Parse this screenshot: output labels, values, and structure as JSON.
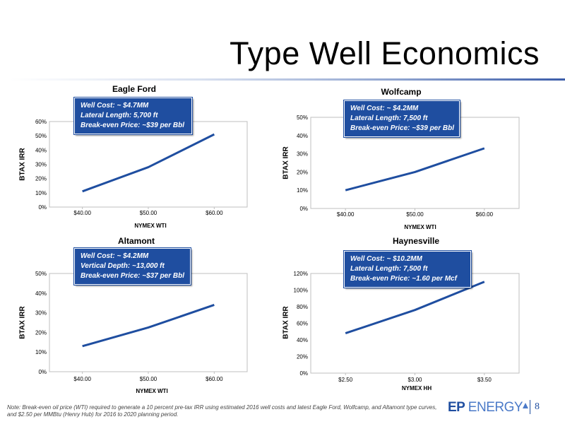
{
  "header": {
    "title": "Type Well Economics"
  },
  "footer": {
    "note": "Note:  Break-even oil price (WTI) required to generate a 10 percent pre-tax IRR using estimated 2016 well costs and latest Eagle Ford, Wolfcamp, and Altamont type curves, and $2.50 per MMBtu (Henry Hub) for 2016 to 2020 planning period.",
    "logo_ep": "EP",
    "logo_energy": "ENERGY",
    "page_number": "8"
  },
  "colors": {
    "line": "#1f4ea0",
    "callout_bg": "#1f4ea0",
    "axis": "#bfbfbf"
  },
  "chart_data": [
    {
      "type": "line",
      "title": "Eagle Ford",
      "xlabel": "NYMEX WTI",
      "ylabel": "BTAX IRR",
      "categories": [
        "$40.00",
        "$50.00",
        "$60.00"
      ],
      "series": [
        {
          "values": [
            0.11,
            0.28,
            0.51
          ]
        }
      ],
      "ylim": [
        0,
        0.6
      ],
      "yticks": [
        "0%",
        "10%",
        "20%",
        "30%",
        "40%",
        "50%",
        "60%"
      ],
      "callout": [
        "Well Cost: ~ $4.7MM",
        "Lateral Length: 5,700 ft",
        "Break-even Price: ~$39 per Bbl"
      ],
      "grid": false
    },
    {
      "type": "line",
      "title": "Wolfcamp",
      "xlabel": "NYMEX WTI",
      "ylabel": "BTAX IRR",
      "categories": [
        "$40.00",
        "$50.00",
        "$60.00"
      ],
      "series": [
        {
          "values": [
            0.1,
            0.2,
            0.33
          ]
        }
      ],
      "ylim": [
        0,
        0.5
      ],
      "yticks": [
        "0%",
        "10%",
        "20%",
        "30%",
        "40%",
        "50%"
      ],
      "callout": [
        "Well Cost: ~ $4.2MM",
        "Lateral Length: 7,500 ft",
        "Break-even Price: ~$39 per Bbl"
      ],
      "grid": false
    },
    {
      "type": "line",
      "title": "Altamont",
      "xlabel": "NYMEX WTI",
      "ylabel": "BTAX IRR",
      "categories": [
        "$40.00",
        "$50.00",
        "$60.00"
      ],
      "series": [
        {
          "values": [
            0.13,
            0.225,
            0.34
          ]
        }
      ],
      "ylim": [
        0,
        0.5
      ],
      "yticks": [
        "0%",
        "10%",
        "20%",
        "30%",
        "40%",
        "50%"
      ],
      "callout": [
        "Well Cost: ~ $4.2MM",
        "Vertical Depth: ~13,000 ft",
        "Break-even Price: ~$37 per Bbl"
      ],
      "grid": false
    },
    {
      "type": "line",
      "title": "Haynesville",
      "xlabel": "NYMEX HH",
      "ylabel": "BTAX IRR",
      "categories": [
        "$2.50",
        "$3.00",
        "$3.50"
      ],
      "series": [
        {
          "values": [
            0.48,
            0.76,
            1.1
          ]
        }
      ],
      "ylim": [
        0,
        1.2
      ],
      "yticks": [
        "0%",
        "20%",
        "40%",
        "60%",
        "80%",
        "100%",
        "120%"
      ],
      "callout": [
        "Well Cost: ~ $10.2MM",
        "Lateral Length: 7,500 ft",
        "Break-even Price: ~1.60 per Mcf"
      ],
      "grid": false
    }
  ]
}
